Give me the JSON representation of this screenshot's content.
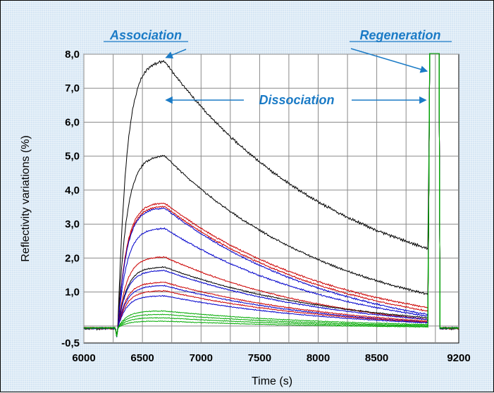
{
  "chart_data": {
    "type": "line",
    "xlabel": "Time (s)",
    "ylabel": "Reflectivity variations (%)",
    "xlim": [
      6000,
      9200
    ],
    "ylim": [
      -0.5,
      8.0
    ],
    "x_ticks": [
      "6000",
      "6500",
      "7000",
      "7500",
      "8000",
      "8500",
      "9200"
    ],
    "x_tick_values": [
      6000,
      6500,
      7000,
      7500,
      8000,
      8500,
      9200
    ],
    "y_ticks": [
      "8,0",
      "7,0",
      "6,0",
      "5,0",
      "4,0",
      "3,0",
      "2,0",
      "1,0",
      "-0,5"
    ],
    "y_tick_values": [
      8,
      7,
      6,
      5,
      4,
      3,
      2,
      1,
      -0.5
    ],
    "vertical_grid": [
      6000,
      6250,
      6500,
      6750,
      7000,
      7250,
      7500,
      7750,
      8000,
      8250,
      8500,
      8750,
      9000
    ],
    "horizontal_grid": [
      0,
      1,
      2,
      3,
      4,
      5,
      6,
      7,
      8
    ],
    "phases": {
      "injection_start": 6290,
      "dissociation_start": 6690,
      "regeneration_start": 8940,
      "regeneration_end": 9040
    },
    "annotations": [
      {
        "text": "Association",
        "points_to_x": 6700,
        "points_to_y": 7.9
      },
      {
        "text": "Dissociation",
        "from_x": 6700,
        "to_x": 8920,
        "at_y": 6.65
      },
      {
        "text": "Regeneration",
        "points_to_x": 8930,
        "points_to_y": 7.5
      }
    ],
    "series": [
      {
        "color": "#000000",
        "baseline": -0.05,
        "plateau": 7.85,
        "end": 2.3
      },
      {
        "color": "#000000",
        "baseline": -0.05,
        "plateau": 5.05,
        "end": 0.95
      },
      {
        "color": "#cc0000",
        "baseline": -0.05,
        "plateau": 3.65,
        "end": 0.55
      },
      {
        "color": "#cc0000",
        "baseline": -0.05,
        "plateau": 3.55,
        "end": 0.45
      },
      {
        "color": "#0000cc",
        "baseline": -0.05,
        "plateau": 3.5,
        "end": 0.35
      },
      {
        "color": "#0000cc",
        "baseline": -0.05,
        "plateau": 2.9,
        "end": 0.3
      },
      {
        "color": "#cc0000",
        "baseline": -0.05,
        "plateau": 2.05,
        "end": 0.2
      },
      {
        "color": "#000000",
        "baseline": -0.05,
        "plateau": 1.75,
        "end": 0.25
      },
      {
        "color": "#0000cc",
        "baseline": -0.05,
        "plateau": 1.65,
        "end": 0.2
      },
      {
        "color": "#cc0000",
        "baseline": -0.05,
        "plateau": 1.3,
        "end": 0.15
      },
      {
        "color": "#0000cc",
        "baseline": -0.05,
        "plateau": 1.2,
        "end": 0.12
      },
      {
        "color": "#cc0000",
        "baseline": -0.05,
        "plateau": 1.05,
        "end": 0.12
      },
      {
        "color": "#0000cc",
        "baseline": -0.05,
        "plateau": 0.9,
        "end": 0.1
      },
      {
        "color": "#00aa00",
        "baseline": -0.05,
        "plateau": 0.45,
        "end": 0.05
      },
      {
        "color": "#00aa00",
        "baseline": -0.05,
        "plateau": 0.35,
        "end": 0.02
      },
      {
        "color": "#00aa00",
        "baseline": -0.05,
        "plateau": 0.25,
        "end": 0.0
      },
      {
        "color": "#00aa00",
        "baseline": -0.05,
        "plateau": 0.15,
        "end": -0.02
      }
    ]
  }
}
